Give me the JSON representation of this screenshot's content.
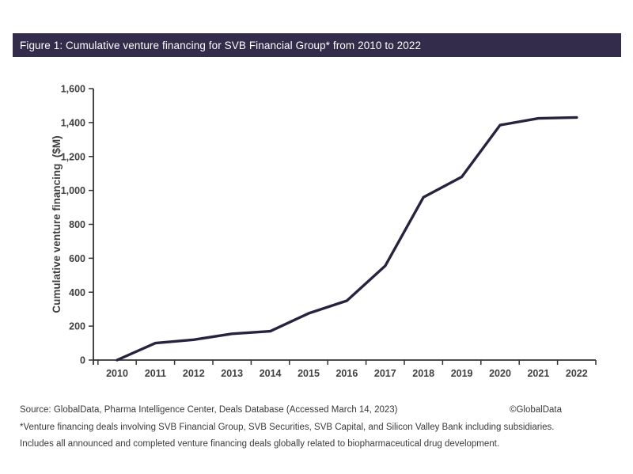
{
  "figure": {
    "title": "Figure 1: Cumulative venture financing for SVB Financial Group* from 2010 to 2022",
    "title_bar_color": "#332c4b"
  },
  "footer": {
    "source": "Source: GlobalData, Pharma Intelligence Center, Deals Database (Accessed March 14, 2023)",
    "copyright": "©GlobalData",
    "note1": "*Venture financing deals involving SVB Financial Group, SVB Securities, SVB Capital, and Silicon Valley Bank including subsidiaries.",
    "note2": "Includes all announced and completed venture financing deals globally related to biopharmaceutical drug development."
  },
  "chart_data": {
    "type": "line",
    "title": "Figure 1: Cumulative venture financing for SVB Financial Group* from 2010 to 2022",
    "categories": [
      "2010",
      "2011",
      "2012",
      "2013",
      "2014",
      "2015",
      "2016",
      "2017",
      "2018",
      "2019",
      "2020",
      "2021",
      "2022"
    ],
    "series": [
      {
        "name": "Cumulative venture financing",
        "values": [
          0,
          100,
          120,
          155,
          170,
          275,
          350,
          555,
          960,
          1080,
          1385,
          1425,
          1430
        ]
      }
    ],
    "xlabel": "",
    "ylabel": "Cumulative venture financing  ($M)",
    "ylim": [
      0,
      1600
    ],
    "y_tick_step": 200,
    "y_tick_labels": [
      "0",
      "200",
      "400",
      "600",
      "800",
      "1,000",
      "1,200",
      "1,400",
      "1,600"
    ],
    "grid": false,
    "legend_position": "none",
    "line_color": "#29223f",
    "axis_color": "#333333",
    "label_color": "#3f3f3f"
  }
}
